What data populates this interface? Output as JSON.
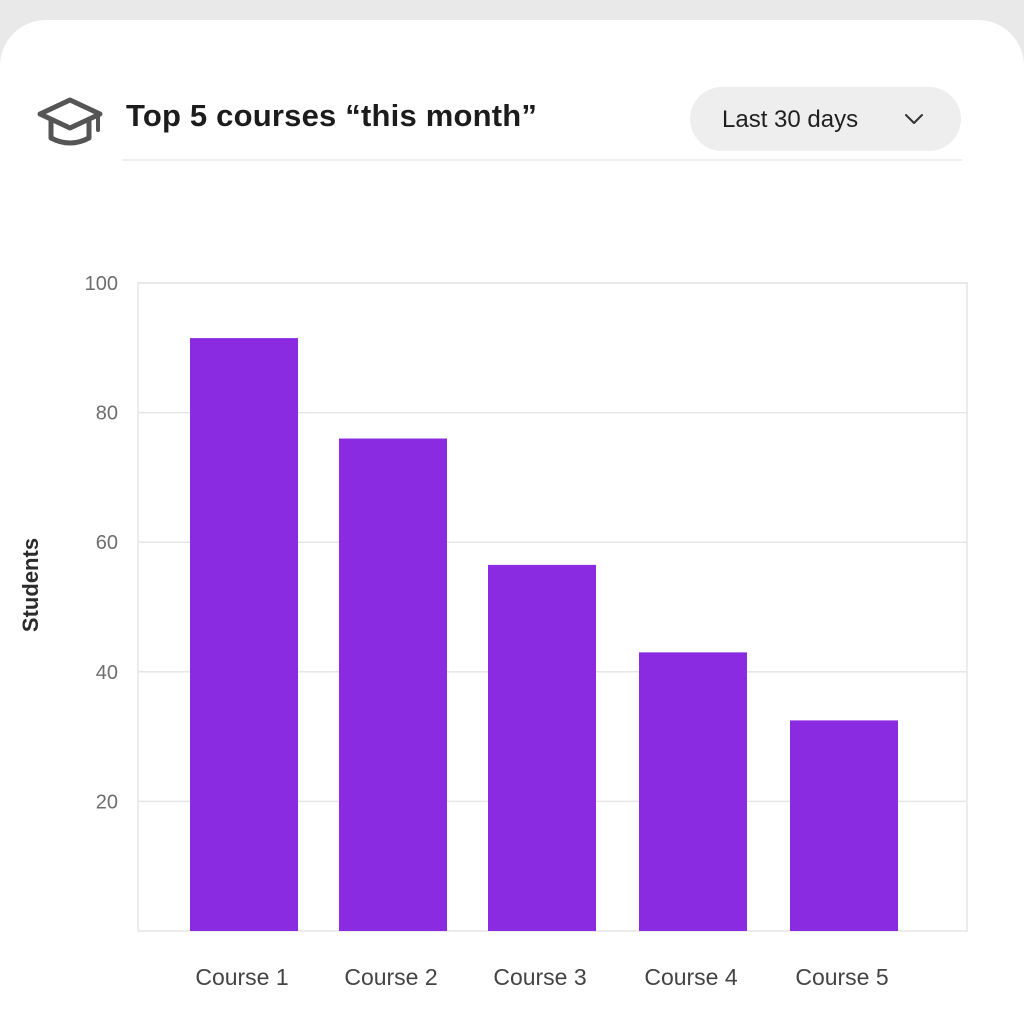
{
  "header": {
    "icon": "graduation-cap-icon",
    "title": "Top 5 courses “this month”"
  },
  "filter": {
    "selected": "Last 30 days",
    "icon": "chevron-down-icon"
  },
  "chart_data": {
    "type": "bar",
    "categories": [
      "Course 1",
      "Course 2",
      "Course 3",
      "Course 4",
      "Course 5"
    ],
    "values": [
      91.5,
      76,
      56.5,
      43,
      32.5
    ],
    "ylabel": "Students",
    "xlabel": "",
    "ylim": [
      0,
      100
    ],
    "yticks": [
      20,
      40,
      60,
      80,
      100
    ],
    "bar_color": "#8a2be2",
    "grid": true
  }
}
